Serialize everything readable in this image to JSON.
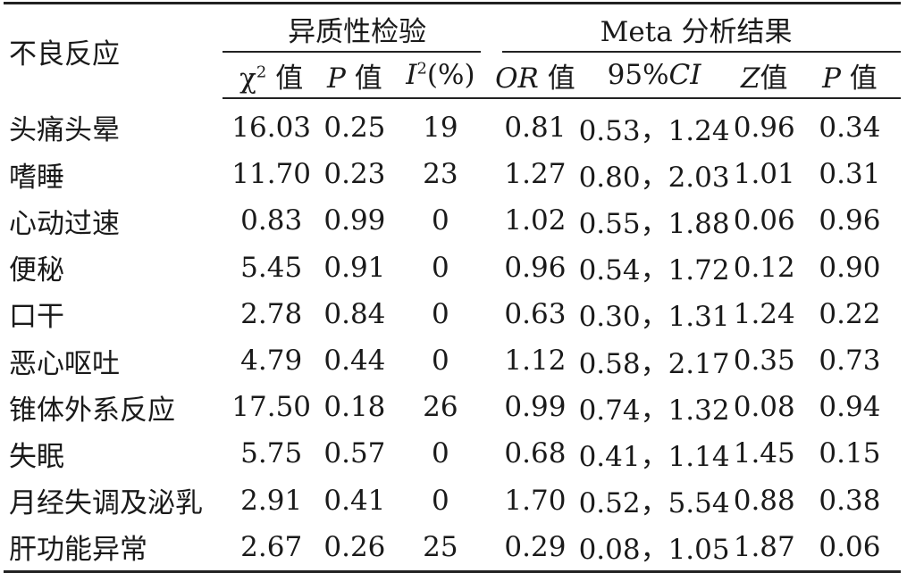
{
  "header": {
    "row_label": "不良反应",
    "group_heterogeneity": "异质性检验",
    "group_meta": "Meta 分析结果",
    "col_chi2_symbol": "χ",
    "col_chi2_sup": "2",
    "col_chi2_suffix": " 值",
    "col_p_symbol": "P",
    "col_p_suffix": " 值",
    "col_i2_symbol": "I",
    "col_i2_sup": "2",
    "col_i2_suffix": "(%)",
    "col_or_symbol": "OR",
    "col_or_suffix": " 值",
    "col_ci_prefix": "95%",
    "col_ci_symbol": "CI",
    "col_z_symbol": "Z",
    "col_z_suffix": "值",
    "col_p2_symbol": "P",
    "col_p2_suffix": " 值"
  },
  "rows": [
    {
      "name": "头痛头晕",
      "chi2": "16.03",
      "p": "0.25",
      "i2": "19",
      "or": "0.81",
      "ci": "0.53，1.24",
      "z": "0.96",
      "p2": "0.34"
    },
    {
      "name": "嗜睡",
      "chi2": "11.70",
      "p": "0.23",
      "i2": "23",
      "or": "1.27",
      "ci": "0.80，2.03",
      "z": "1.01",
      "p2": "0.31"
    },
    {
      "name": "心动过速",
      "chi2": "0.83",
      "p": "0.99",
      "i2": "0",
      "or": "1.02",
      "ci": "0.55，1.88",
      "z": "0.06",
      "p2": "0.96"
    },
    {
      "name": "便秘",
      "chi2": "5.45",
      "p": "0.91",
      "i2": "0",
      "or": "0.96",
      "ci": "0.54，1.72",
      "z": "0.12",
      "p2": "0.90"
    },
    {
      "name": "口干",
      "chi2": "2.78",
      "p": "0.84",
      "i2": "0",
      "or": "0.63",
      "ci": "0.30，1.31",
      "z": "1.24",
      "p2": "0.22"
    },
    {
      "name": "恶心呕吐",
      "chi2": "4.79",
      "p": "0.44",
      "i2": "0",
      "or": "1.12",
      "ci": "0.58，2.17",
      "z": "0.35",
      "p2": "0.73"
    },
    {
      "name": "锥体外系反应",
      "chi2": "17.50",
      "p": "0.18",
      "i2": "26",
      "or": "0.99",
      "ci": "0.74，1.32",
      "z": "0.08",
      "p2": "0.94"
    },
    {
      "name": "失眠",
      "chi2": "5.75",
      "p": "0.57",
      "i2": "0",
      "or": "0.68",
      "ci": "0.41，1.14",
      "z": "1.45",
      "p2": "0.15"
    },
    {
      "name": "月经失调及泌乳",
      "chi2": "2.91",
      "p": "0.41",
      "i2": "0",
      "or": "1.70",
      "ci": "0.52，5.54",
      "z": "0.88",
      "p2": "0.38"
    },
    {
      "name": "肝功能异常",
      "chi2": "2.67",
      "p": "0.26",
      "i2": "25",
      "or": "0.29",
      "ci": "0.08，1.05",
      "z": "1.87",
      "p2": "0.06"
    }
  ]
}
